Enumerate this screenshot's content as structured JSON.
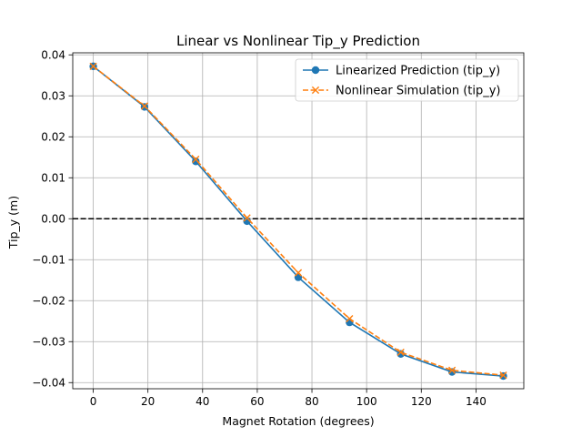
{
  "chart_data": {
    "type": "line",
    "title": "Linear vs Nonlinear Tip_y Prediction",
    "xlabel": "Magnet Rotation (degrees)",
    "ylabel": "Tip_y (m)",
    "xlim": [
      -7.5,
      157.5
    ],
    "ylim": [
      -0.0415,
      0.0405
    ],
    "xticks": [
      0,
      20,
      40,
      60,
      80,
      100,
      120,
      140
    ],
    "yticks": [
      0.04,
      0.03,
      0.02,
      0.01,
      0.0,
      -0.01,
      -0.02,
      -0.03,
      -0.04
    ],
    "xtick_labels": [
      "0",
      "20",
      "40",
      "60",
      "80",
      "100",
      "120",
      "140"
    ],
    "ytick_labels": [
      "0.04",
      "0.03",
      "0.02",
      "0.01",
      "0.00",
      "−0.01",
      "−0.02",
      "−0.03",
      "−0.04"
    ],
    "grid": true,
    "legend_position": "top-right",
    "reference_line": {
      "y": 0,
      "style": "dashed",
      "color": "#000000"
    },
    "x": [
      0,
      18.75,
      37.5,
      56.25,
      75,
      93.75,
      112.5,
      131.25,
      150
    ],
    "series": [
      {
        "name": "Linearized Prediction (tip_y)",
        "color": "#1f77b4",
        "marker": "circle",
        "linestyle": "solid",
        "values": [
          0.0372,
          0.0273,
          0.014,
          -0.0006,
          -0.0143,
          -0.0253,
          -0.033,
          -0.0374,
          -0.0384
        ]
      },
      {
        "name": "Nonlinear Simulation (tip_y)",
        "color": "#ff7f0e",
        "marker": "x",
        "linestyle": "dashed",
        "values": [
          0.0372,
          0.0275,
          0.0145,
          0.0002,
          -0.0132,
          -0.0244,
          -0.0326,
          -0.037,
          -0.0382
        ]
      }
    ]
  }
}
